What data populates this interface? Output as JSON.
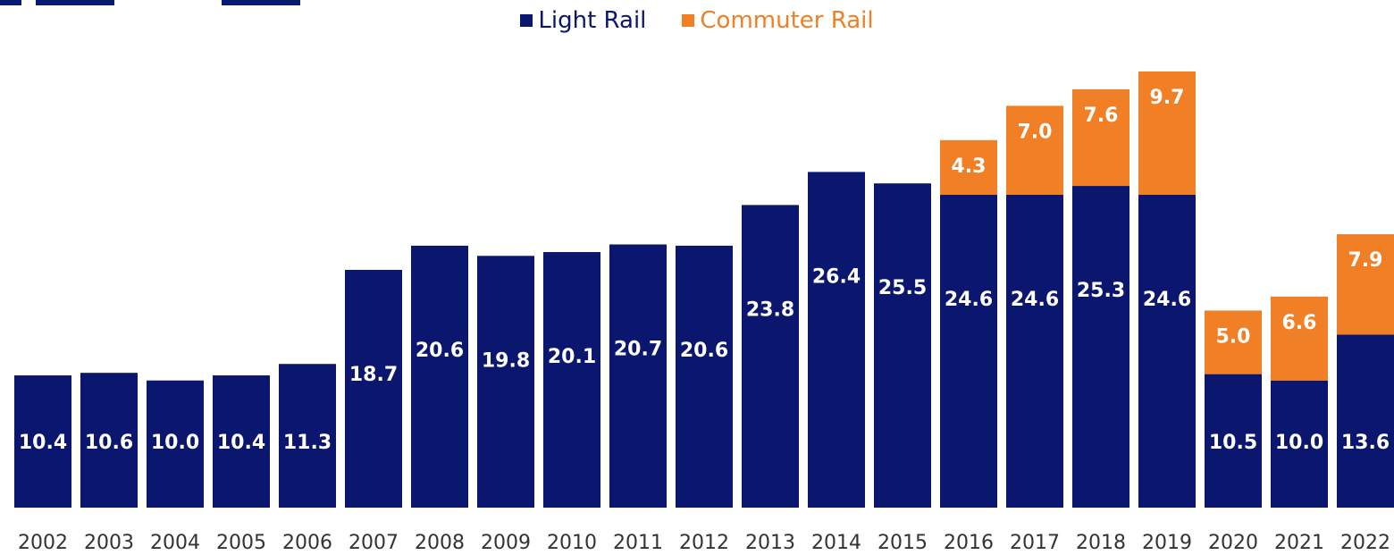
{
  "chart_data": {
    "type": "bar",
    "stacked": true,
    "categories": [
      "2002",
      "2003",
      "2004",
      "2005",
      "2006",
      "2007",
      "2008",
      "2009",
      "2010",
      "2011",
      "2012",
      "2013",
      "2014",
      "2015",
      "2016",
      "2017",
      "2018",
      "2019",
      "2020",
      "2021",
      "2022"
    ],
    "series": [
      {
        "name": "Light Rail",
        "color": "#0b176e",
        "values": [
          10.4,
          10.6,
          10.0,
          10.4,
          11.3,
          18.7,
          20.6,
          19.8,
          20.1,
          20.7,
          20.6,
          23.8,
          26.4,
          25.5,
          24.6,
          24.6,
          25.3,
          24.6,
          10.5,
          10.0,
          13.6
        ]
      },
      {
        "name": "Commuter Rail",
        "color": "#f07f25",
        "values": [
          null,
          null,
          null,
          null,
          null,
          null,
          null,
          null,
          null,
          null,
          null,
          null,
          null,
          null,
          4.3,
          7.0,
          7.6,
          9.7,
          5.0,
          6.6,
          7.9
        ]
      }
    ],
    "labels": {
      "light": [
        "10.4",
        "10.6",
        "10.0",
        "10.4",
        "11.3",
        "18.7",
        "20.6",
        "19.8",
        "20.1",
        "20.7",
        "20.6",
        "23.8",
        "26.4",
        "25.5",
        "24.6",
        "24.6",
        "25.3",
        "24.6",
        "10.5",
        "10.0",
        "13.6"
      ],
      "commuter": [
        "",
        "",
        "",
        "",
        "",
        "",
        "",
        "",
        "",
        "",
        "",
        "",
        "",
        "",
        "4.3",
        "7.0",
        "7.6",
        "9.7",
        "5.0",
        "6.6",
        "7.9"
      ]
    },
    "title": "",
    "xlabel": "",
    "ylabel": "",
    "ylim": [
      0,
      34.3
    ],
    "grid": false,
    "legend_position": "top-center"
  }
}
